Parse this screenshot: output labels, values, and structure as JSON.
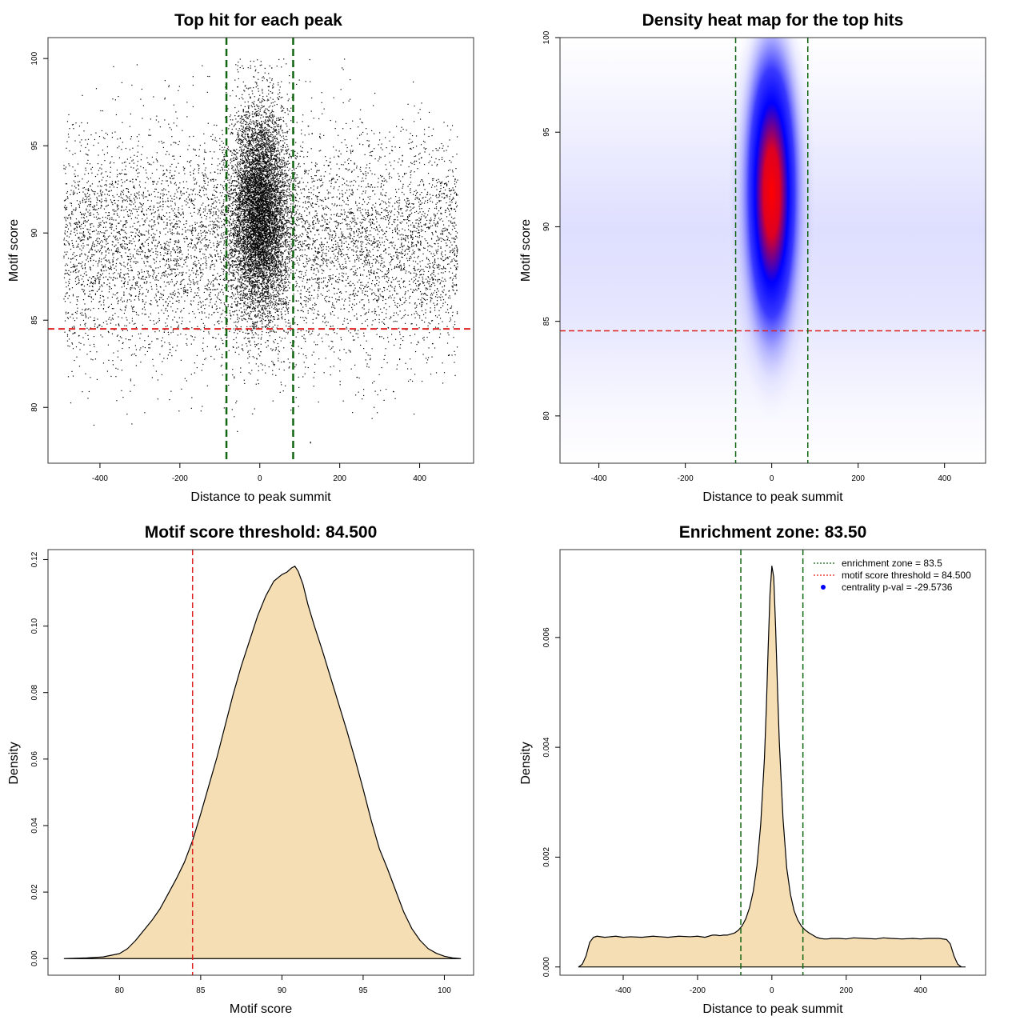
{
  "colors": {
    "threshold_line": "#dd2222",
    "zone_line": "#116611",
    "fill": "#f5deb3",
    "points": "#000000",
    "heat_mid": "#0000ff",
    "heat_high": "#ff0000",
    "legend_dot": "#0000ff"
  },
  "chart_data": [
    {
      "id": "scatter",
      "type": "scatter",
      "title": "Top hit for each peak",
      "xlabel": "Distance to peak summit",
      "ylabel": "Motif score",
      "xlim": [
        -530,
        535
      ],
      "ylim": [
        76.8,
        101.2
      ],
      "xticks": [
        -400,
        -200,
        0,
        200,
        400
      ],
      "yticks": [
        80,
        85,
        90,
        95,
        100
      ],
      "hlines": [
        84.5
      ],
      "vlines": [
        -83.5,
        83.5
      ],
      "point_count": 15000,
      "background": {
        "x_range": [
          -490,
          495
        ],
        "score_mean": 89.3,
        "score_sd": 3.3
      },
      "central": {
        "x_sd": 36,
        "score_mean": 91.2,
        "score_sd": 3.0
      }
    },
    {
      "id": "heatmap",
      "type": "heatmap",
      "title": "Density heat map for the top hits",
      "xlabel": "Distance to peak summit",
      "ylabel": "Motif score",
      "xlim": [
        -490,
        495
      ],
      "ylim": [
        77.5,
        100.0
      ],
      "xticks": [
        -400,
        -200,
        0,
        200,
        400
      ],
      "yticks": [
        80,
        85,
        90,
        95,
        100
      ],
      "hlines": [
        84.5
      ],
      "vlines": [
        -83.5,
        83.5
      ],
      "hotspot": {
        "x": 0,
        "y": 91.8
      }
    },
    {
      "id": "score-density",
      "type": "area",
      "title": "Motif score threshold: 84.500",
      "xlabel": "Motif score",
      "ylabel": "Density",
      "xlim": [
        75.6,
        101.8
      ],
      "ylim": [
        -0.005,
        0.123
      ],
      "xticks": [
        80,
        85,
        90,
        95,
        100
      ],
      "yticks": [
        0.0,
        0.02,
        0.04,
        0.06,
        0.08,
        0.1,
        0.12
      ],
      "ytick_labels": [
        "0.00",
        "0.02",
        "0.04",
        "0.06",
        "0.08",
        "0.10",
        "0.12"
      ],
      "vlines": [
        84.5
      ],
      "x": [
        76.6,
        78,
        79,
        80,
        80.5,
        81,
        81.5,
        82,
        82.5,
        83,
        83.5,
        84,
        84.5,
        85,
        85.5,
        86,
        86.5,
        87,
        87.5,
        88,
        88.5,
        89,
        89.5,
        90,
        90.3,
        90.6,
        90.8,
        91,
        91.3,
        91.6,
        92,
        92.5,
        93,
        93.5,
        94,
        94.5,
        95,
        95.5,
        96,
        96.5,
        97,
        97.5,
        98,
        98.5,
        99,
        99.5,
        100,
        100.5,
        101
      ],
      "y": [
        0.0,
        0.0002,
        0.0005,
        0.0015,
        0.003,
        0.0055,
        0.0085,
        0.0115,
        0.015,
        0.0195,
        0.024,
        0.029,
        0.0355,
        0.0435,
        0.052,
        0.0605,
        0.07,
        0.0795,
        0.088,
        0.0955,
        0.103,
        0.109,
        0.1135,
        0.1155,
        0.1162,
        0.1175,
        0.118,
        0.1165,
        0.1125,
        0.1065,
        0.1,
        0.0925,
        0.0845,
        0.0765,
        0.0685,
        0.06,
        0.051,
        0.0415,
        0.033,
        0.027,
        0.0205,
        0.014,
        0.009,
        0.0055,
        0.003,
        0.0016,
        0.0007,
        0.0002,
        0.0
      ]
    },
    {
      "id": "distance-density",
      "type": "area",
      "title": "Enrichment zone: 83.50",
      "xlabel": "Distance to peak summit",
      "ylabel": "Density",
      "xlim": [
        -570,
        575
      ],
      "ylim": [
        -0.00015,
        0.0076
      ],
      "xticks": [
        -400,
        -200,
        0,
        200,
        400
      ],
      "yticks": [
        0.0,
        0.002,
        0.004,
        0.006
      ],
      "ytick_labels": [
        "0.000",
        "0.002",
        "0.004",
        "0.006"
      ],
      "vlines": [
        -83.5,
        83.5
      ],
      "x": [
        -520,
        -510,
        -500,
        -490,
        -480,
        -470,
        -450,
        -420,
        -400,
        -380,
        -350,
        -320,
        -300,
        -280,
        -250,
        -220,
        -200,
        -180,
        -170,
        -160,
        -150,
        -140,
        -130,
        -120,
        -110,
        -100,
        -90,
        -80,
        -70,
        -60,
        -50,
        -40,
        -30,
        -20,
        -15,
        -10,
        -5,
        0,
        5,
        10,
        15,
        20,
        30,
        40,
        50,
        60,
        70,
        80,
        90,
        100,
        110,
        120,
        130,
        140,
        150,
        160,
        180,
        200,
        220,
        250,
        280,
        300,
        320,
        350,
        380,
        400,
        420,
        450,
        470,
        480,
        490,
        500,
        510,
        520
      ],
      "y": [
        0.0,
        5e-05,
        0.0002,
        0.00045,
        0.00054,
        0.00056,
        0.00054,
        0.00056,
        0.00054,
        0.00055,
        0.00054,
        0.00056,
        0.00055,
        0.00054,
        0.00056,
        0.00055,
        0.00056,
        0.00054,
        0.00056,
        0.00058,
        0.00058,
        0.00057,
        0.00058,
        0.00058,
        0.0006,
        0.00062,
        0.00067,
        0.00075,
        0.00088,
        0.00108,
        0.00138,
        0.00185,
        0.0026,
        0.0038,
        0.0047,
        0.0058,
        0.0068,
        0.0073,
        0.0071,
        0.0062,
        0.0051,
        0.0041,
        0.0027,
        0.0018,
        0.00132,
        0.00102,
        0.00085,
        0.00074,
        0.00067,
        0.00062,
        0.00058,
        0.00054,
        0.00052,
        0.00051,
        0.00051,
        0.00052,
        0.00052,
        0.00051,
        0.00053,
        0.00052,
        0.00051,
        0.00053,
        0.00052,
        0.00051,
        0.00052,
        0.00051,
        0.00052,
        0.00052,
        0.0005,
        0.00042,
        0.0002,
        5e-05,
        0.0,
        0.0
      ],
      "legend": [
        {
          "label": "enrichment zone = 83.5",
          "style": "line",
          "color": "#116611"
        },
        {
          "label": "motif score threshold = 84.500",
          "style": "line",
          "color": "#dd2222"
        },
        {
          "label": "centrality p-val = -29.5736",
          "style": "dot",
          "color": "#0000ff"
        }
      ],
      "legend_position": "top-right"
    }
  ]
}
